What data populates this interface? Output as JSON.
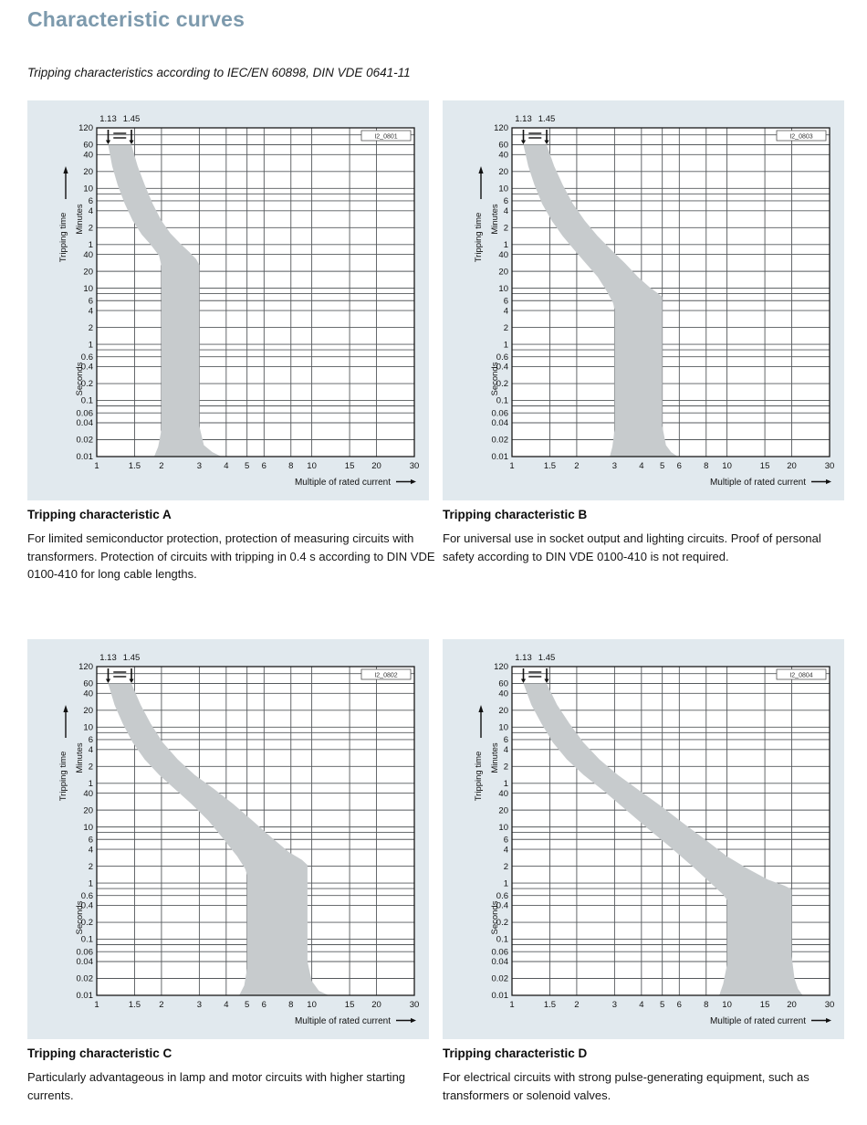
{
  "page": {
    "title": "Characteristic curves",
    "subtitle": "Tripping characteristics according to IEC/EN 60898, DIN VDE 0641-11",
    "title_color": "#7d9aad",
    "panel_background": "#e1e9ee"
  },
  "chart_data": {
    "type": "area",
    "x_scale": "log",
    "y_scale": "log",
    "x_label": "Multiple of rated current",
    "y_axis_label": "Tripping time",
    "x_range": [
      1,
      30
    ],
    "y_range_seconds": [
      0.01,
      7200
    ],
    "x_ticks": [
      1,
      1.5,
      2,
      3,
      4,
      5,
      6,
      8,
      10,
      15,
      20,
      30
    ],
    "y_ticks_minutes": {
      "label": "Minutes",
      "values": [
        120,
        60,
        40,
        20,
        10,
        6,
        4,
        2,
        1
      ]
    },
    "y_ticks_seconds": {
      "label": "Seconds",
      "values": [
        40,
        20,
        10,
        6,
        4,
        2,
        1,
        0.6,
        0.4,
        0.2,
        0.1,
        0.06,
        0.04,
        0.02,
        0.01
      ]
    },
    "y_unlabeled_gridlines_seconds": [
      5400,
      480,
      8,
      0.8,
      0.08
    ],
    "top_markers": [
      1.13,
      1.45
    ],
    "top_marker_labels": [
      "1.13",
      "1.45"
    ],
    "band_color": "#c7cbcd",
    "grid_color": "#55595c",
    "legend_position": "none",
    "grid": true,
    "charts": [
      {
        "name": "Tripping characteristic A",
        "id_label": "I2_0801",
        "caption_title": "Tripping characteristic A",
        "caption_body": "For limited semiconductor protection, protection of measuring circuits with transformers. Protection of circuits with tripping in 0.4 s according to DIN VDE 0100-410 for long cable lengths.",
        "band_left": [
          [
            1.13,
            3600
          ],
          [
            1.18,
            1500
          ],
          [
            1.25,
            700
          ],
          [
            1.35,
            320
          ],
          [
            1.47,
            160
          ],
          [
            1.62,
            90
          ],
          [
            1.78,
            60
          ],
          [
            1.95,
            38
          ],
          [
            2.0,
            25
          ],
          [
            2.0,
            0.03
          ],
          [
            1.93,
            0.015
          ],
          [
            1.85,
            0.01
          ]
        ],
        "band_right": [
          [
            1.45,
            3600
          ],
          [
            1.55,
            1500
          ],
          [
            1.67,
            700
          ],
          [
            1.82,
            320
          ],
          [
            2.0,
            160
          ],
          [
            2.2,
            95
          ],
          [
            2.45,
            62
          ],
          [
            2.7,
            44
          ],
          [
            2.9,
            33
          ],
          [
            3.0,
            26
          ],
          [
            3.0,
            0.035
          ],
          [
            3.15,
            0.016
          ],
          [
            3.45,
            0.012
          ],
          [
            3.8,
            0.01
          ]
        ]
      },
      {
        "name": "Tripping characteristic B",
        "id_label": "I2_0803",
        "caption_title": "Tripping characteristic B",
        "caption_body": "For universal use in socket output and lighting circuits. Proof of personal safety according to DIN VDE 0100-410 is not required.",
        "band_left": [
          [
            1.13,
            3600
          ],
          [
            1.19,
            1500
          ],
          [
            1.27,
            700
          ],
          [
            1.38,
            320
          ],
          [
            1.53,
            160
          ],
          [
            1.72,
            85
          ],
          [
            1.95,
            48
          ],
          [
            2.2,
            28
          ],
          [
            2.5,
            16
          ],
          [
            2.75,
            9
          ],
          [
            2.95,
            5.5
          ],
          [
            3.0,
            4.2
          ],
          [
            3.0,
            0.03
          ],
          [
            2.93,
            0.015
          ],
          [
            2.85,
            0.01
          ]
        ],
        "band_right": [
          [
            1.45,
            3600
          ],
          [
            1.57,
            1500
          ],
          [
            1.72,
            700
          ],
          [
            1.92,
            320
          ],
          [
            2.18,
            160
          ],
          [
            2.5,
            85
          ],
          [
            2.9,
            48
          ],
          [
            3.35,
            28
          ],
          [
            3.85,
            16
          ],
          [
            4.35,
            10.5
          ],
          [
            4.8,
            8
          ],
          [
            5.0,
            7
          ],
          [
            5.0,
            0.035
          ],
          [
            5.2,
            0.016
          ],
          [
            5.5,
            0.012
          ],
          [
            5.9,
            0.01
          ]
        ]
      },
      {
        "name": "Tripping characteristic C",
        "id_label": "I2_0802",
        "caption_title": "Tripping characteristic C",
        "caption_body": "Particularly advantageous in lamp and motor circuits with higher starting currents.",
        "band_left": [
          [
            1.13,
            3600
          ],
          [
            1.21,
            1500
          ],
          [
            1.32,
            700
          ],
          [
            1.47,
            320
          ],
          [
            1.67,
            160
          ],
          [
            1.95,
            85
          ],
          [
            2.3,
            48
          ],
          [
            2.75,
            26
          ],
          [
            3.3,
            13
          ],
          [
            3.9,
            6
          ],
          [
            4.5,
            3
          ],
          [
            4.9,
            1.8
          ],
          [
            5.0,
            1.4
          ],
          [
            5.0,
            0.03
          ],
          [
            4.85,
            0.015
          ],
          [
            4.6,
            0.01
          ]
        ],
        "band_right": [
          [
            1.45,
            3600
          ],
          [
            1.6,
            1500
          ],
          [
            1.78,
            700
          ],
          [
            2.03,
            320
          ],
          [
            2.38,
            160
          ],
          [
            2.85,
            85
          ],
          [
            3.5,
            48
          ],
          [
            4.3,
            26
          ],
          [
            5.3,
            13
          ],
          [
            6.5,
            6.5
          ],
          [
            7.8,
            3.6
          ],
          [
            9.0,
            2.6
          ],
          [
            9.55,
            2.1
          ],
          [
            9.55,
            0.04
          ],
          [
            10.0,
            0.018
          ],
          [
            10.8,
            0.012
          ],
          [
            12.0,
            0.01
          ]
        ]
      },
      {
        "name": "Tripping characteristic D",
        "id_label": "I2_0804",
        "caption_title": "Tripping characteristic D",
        "caption_body": "For electrical circuits with strong pulse-generating equipment, such as transformers or solenoid valves.",
        "band_left": [
          [
            1.13,
            3600
          ],
          [
            1.23,
            1500
          ],
          [
            1.37,
            700
          ],
          [
            1.55,
            320
          ],
          [
            1.8,
            160
          ],
          [
            2.15,
            85
          ],
          [
            2.65,
            45
          ],
          [
            3.3,
            22
          ],
          [
            4.2,
            10
          ],
          [
            5.4,
            4.5
          ],
          [
            6.9,
            2.0
          ],
          [
            8.4,
            1.0
          ],
          [
            9.6,
            0.62
          ],
          [
            10.0,
            0.5
          ],
          [
            10.0,
            0.035
          ],
          [
            9.6,
            0.016
          ],
          [
            9.2,
            0.01
          ]
        ],
        "band_right": [
          [
            1.45,
            3600
          ],
          [
            1.62,
            1500
          ],
          [
            1.85,
            700
          ],
          [
            2.15,
            320
          ],
          [
            2.55,
            160
          ],
          [
            3.1,
            85
          ],
          [
            3.9,
            45
          ],
          [
            4.9,
            24
          ],
          [
            6.2,
            12
          ],
          [
            7.9,
            6
          ],
          [
            10.0,
            3.0
          ],
          [
            12.5,
            1.8
          ],
          [
            15.5,
            1.15
          ],
          [
            18.5,
            0.9
          ],
          [
            20.0,
            0.78
          ],
          [
            20.0,
            0.05
          ],
          [
            20.6,
            0.02
          ],
          [
            21.4,
            0.013
          ],
          [
            22.5,
            0.01
          ]
        ]
      }
    ]
  }
}
